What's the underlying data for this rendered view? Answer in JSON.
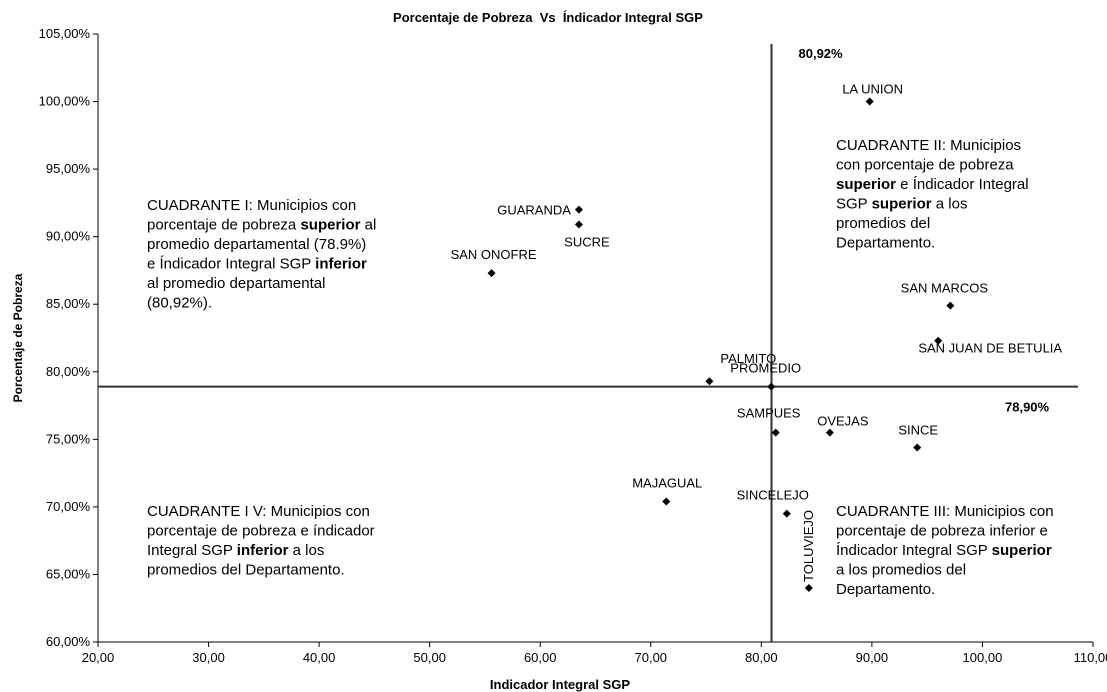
{
  "chart_data": {
    "type": "scatter",
    "title": "Porcentaje de Pobreza  Vs  Índicador Integral SGP",
    "x_label": "Indicador Integral SGP",
    "y_label": "Porcentaje de Pobreza",
    "color": "#000000",
    "xlim": [
      20,
      110
    ],
    "ylim": [
      60,
      105
    ],
    "xticks": [
      {
        "value": 20,
        "label": "20,00"
      },
      {
        "value": 30,
        "label": "30,00"
      },
      {
        "value": 40,
        "label": "40,00"
      },
      {
        "value": 50,
        "label": "50,00"
      },
      {
        "value": 60,
        "label": "60,00"
      },
      {
        "value": 70,
        "label": "70,00"
      },
      {
        "value": 80,
        "label": "80,00"
      },
      {
        "value": 90,
        "label": "90,00"
      },
      {
        "value": 100,
        "label": "100,00"
      },
      {
        "value": 110,
        "label": "110,00"
      }
    ],
    "yticks": [
      {
        "value": 60,
        "label": "60,00%"
      },
      {
        "value": 65,
        "label": "65,00%"
      },
      {
        "value": 70,
        "label": "70,00%"
      },
      {
        "value": 75,
        "label": "75,00%"
      },
      {
        "value": 80,
        "label": "80,00%"
      },
      {
        "value": 85,
        "label": "85,00%"
      },
      {
        "value": 90,
        "label": "90,00%"
      },
      {
        "value": 95,
        "label": "95,00%"
      },
      {
        "value": 100,
        "label": "100,00%"
      },
      {
        "value": 105,
        "label": "105,00%"
      }
    ],
    "names": [
      "GUARANDA",
      "SUCRE",
      "SAN ONOFRE",
      "LA UNION",
      "SAN MARCOS",
      "SAN JUAN DE BETULIA",
      "PALMITO",
      "PROMEDIO",
      "SAMPUES",
      "OVEJAS",
      "SINCE",
      "MAJAGUAL",
      "SINCELEJO",
      "TOLUVIEJO"
    ],
    "x": [
      63.5,
      63.5,
      55.6,
      89.8,
      97.1,
      96.0,
      75.3,
      80.9,
      81.3,
      86.2,
      94.1,
      71.4,
      82.3,
      84.3
    ],
    "values": [
      92.0,
      90.9,
      87.3,
      100.0,
      84.9,
      82.3,
      79.3,
      78.9,
      75.5,
      75.5,
      74.4,
      70.4,
      69.5,
      64.0
    ],
    "reference_lines": [
      {
        "axis": "x",
        "value": 80.92,
        "label": "80,92%"
      },
      {
        "axis": "y",
        "value": 78.9,
        "label": "78,90%"
      }
    ],
    "annotations": [
      {
        "lines": [
          [
            {
              "text": "CUADRANTE I: Municipios con"
            }
          ],
          [
            {
              "text": "porcentaje de pobreza "
            },
            {
              "text": "superior",
              "bold": true
            },
            {
              "text": " al"
            }
          ],
          [
            {
              "text": "promedio departamental (78.9%)"
            }
          ],
          [
            {
              "text": "e Índicador Integral SGP "
            },
            {
              "text": "inferior",
              "bold": true
            }
          ],
          [
            {
              "text": "al promedio departamental"
            }
          ],
          [
            {
              "text": "(80,92%)."
            }
          ]
        ]
      },
      {
        "lines": [
          [
            {
              "text": "CUADRANTE II: Municipios"
            }
          ],
          [
            {
              "text": "con porcentaje de pobreza"
            }
          ],
          [
            {
              "text": "superior",
              "bold": true
            },
            {
              "text": " e Índicador Integral"
            }
          ],
          [
            {
              "text": "SGP "
            },
            {
              "text": "superior",
              "bold": true
            },
            {
              "text": " a los"
            }
          ],
          [
            {
              "text": "promedios del"
            }
          ],
          [
            {
              "text": "Departamento."
            }
          ]
        ]
      },
      {
        "lines": [
          [
            {
              "text": "CUADRANTE III: Municipios con"
            }
          ],
          [
            {
              "text": "porcentaje de pobreza inferior e"
            }
          ],
          [
            {
              "text": "Índicador Integral SGP "
            },
            {
              "text": "superior",
              "bold": true
            }
          ],
          [
            {
              "text": "a los promedios del"
            }
          ],
          [
            {
              "text": "Departamento."
            }
          ]
        ]
      },
      {
        "lines": [
          [
            {
              "text": "CUADRANTE I V: Municipios con"
            }
          ],
          [
            {
              "text": "porcentaje de pobreza e índicador"
            }
          ],
          [
            {
              "text": "Integral SGP "
            },
            {
              "text": "inferior",
              "bold": true
            },
            {
              "text": " a los"
            }
          ],
          [
            {
              "text": "promedios del Departamento."
            }
          ]
        ]
      }
    ]
  }
}
